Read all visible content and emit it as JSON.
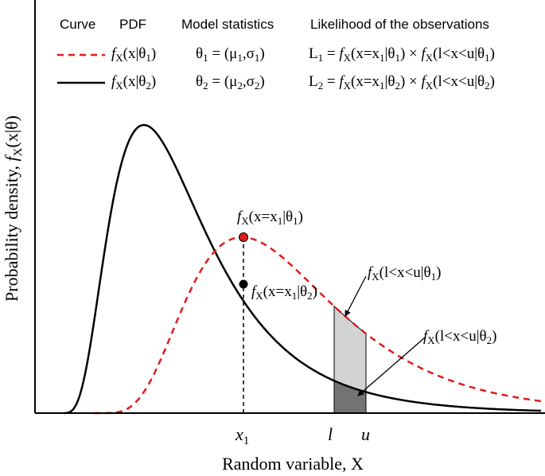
{
  "axes": {
    "xlabel": "Random variable, X",
    "ylabel_text": "Probability density, ",
    "ylabel_f": "f",
    "ylabel_sub": "X",
    "ylabel_arg": "(x|θ)",
    "x_ticks": {
      "x1": "x",
      "x1_sub": "1",
      "l": "l",
      "u": "u"
    }
  },
  "legend": {
    "headers": {
      "curve": "Curve",
      "pdf": "PDF",
      "stats": "Model statistics",
      "likelihood": "Likelihood of the observations"
    },
    "rows": [
      {
        "pdf_f": "f",
        "pdf_sub": "X",
        "pdf_arg": "(x|θ",
        "pdf_idx": "1",
        "pdf_close": ")",
        "theta": "θ",
        "theta_idx": "1",
        "stats_eq": " = (μ",
        "mu_idx": "1",
        "comma": ",σ",
        "sigma_idx": "1",
        "stats_close": ")",
        "L": "L",
        "L_idx": "1",
        "L_eq": " = ",
        "t1_f": "f",
        "t1_sub": "X",
        "t1_arg": "(x=x",
        "t1_x_idx": "1",
        "t1_bar": "|θ",
        "t1_idx": "1",
        "t1_close": ")",
        "times": " × ",
        "t2_f": "f",
        "t2_sub": "X",
        "t2_arg": "(l<x<u|θ",
        "t2_idx": "1",
        "t2_close": ")",
        "color": "#e31a1c",
        "style": "dashed"
      },
      {
        "pdf_f": "f",
        "pdf_sub": "X",
        "pdf_arg": "(x|θ",
        "pdf_idx": "2",
        "pdf_close": ")",
        "theta": "θ",
        "theta_idx": "2",
        "stats_eq": " = (μ",
        "mu_idx": "2",
        "comma": ",σ",
        "sigma_idx": "2",
        "stats_close": ")",
        "L": "L",
        "L_idx": "2",
        "L_eq": " = ",
        "t1_f": "f",
        "t1_sub": "X",
        "t1_arg": "(x=x",
        "t1_x_idx": "1",
        "t1_bar": "|θ",
        "t1_idx": "2",
        "t1_close": ")",
        "times": " × ",
        "t2_f": "f",
        "t2_sub": "X",
        "t2_arg": "(l<x<u|θ",
        "t2_idx": "2",
        "t2_close": ")",
        "color": "#000000",
        "style": "solid"
      }
    ]
  },
  "annotations": {
    "point1": {
      "f": "f",
      "sub": "X",
      "arg": "(x=x",
      "x_idx": "1",
      "bar": "|θ",
      "idx": "1",
      "close": ")"
    },
    "point2": {
      "f": "f",
      "sub": "X",
      "arg": "(x=x",
      "x_idx": "1",
      "bar": "|θ",
      "idx": "2",
      "close": ")"
    },
    "area1": {
      "f": "f",
      "sub": "X",
      "arg": "(l<x<u|θ",
      "idx": "1",
      "close": ")"
    },
    "area2": {
      "f": "f",
      "sub": "X",
      "arg": "(l<x<u|θ",
      "idx": "2",
      "close": ")"
    }
  },
  "colors": {
    "curve1": "#e31a1c",
    "curve2": "#000000",
    "area_light": "#d3d3d3",
    "area_dark": "#737373",
    "point1": "#e31a1c",
    "point2": "#000000"
  }
}
